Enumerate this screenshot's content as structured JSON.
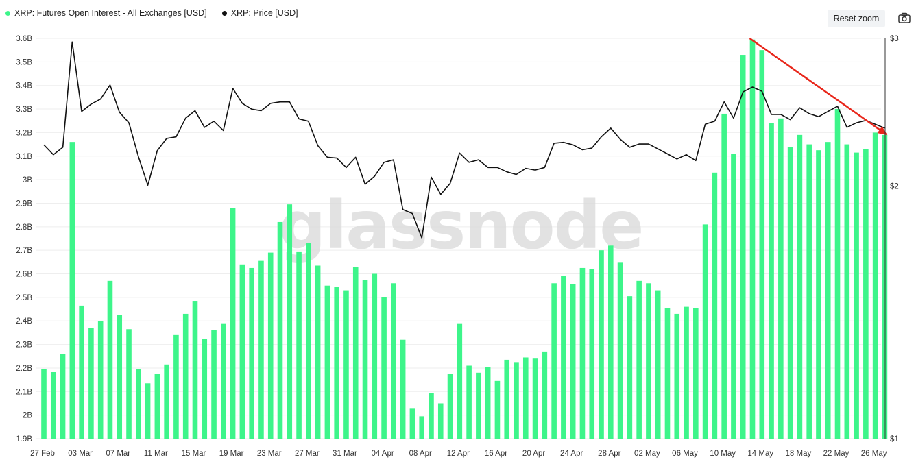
{
  "legend": {
    "oi_label": "XRP: Futures Open Interest - All Exchanges [USD]",
    "price_label": "XRP: Price [USD]"
  },
  "toolbar": {
    "reset_zoom_label": "Reset zoom",
    "camera_icon": "camera-icon"
  },
  "watermark": "glassnode",
  "colors": {
    "bar": "#3df58a",
    "price": "#111111",
    "trend": "#e8261a"
  },
  "chart_data": {
    "type": "bar",
    "dates": [
      "27 Feb",
      "28 Feb",
      "01 Mar",
      "02 Mar",
      "03 Mar",
      "04 Mar",
      "05 Mar",
      "06 Mar",
      "07 Mar",
      "08 Mar",
      "09 Mar",
      "10 Mar",
      "11 Mar",
      "12 Mar",
      "13 Mar",
      "14 Mar",
      "15 Mar",
      "16 Mar",
      "17 Mar",
      "18 Mar",
      "19 Mar",
      "20 Mar",
      "21 Mar",
      "22 Mar",
      "23 Mar",
      "24 Mar",
      "25 Mar",
      "26 Mar",
      "27 Mar",
      "28 Mar",
      "29 Mar",
      "30 Mar",
      "31 Mar",
      "01 Apr",
      "02 Apr",
      "03 Apr",
      "04 Apr",
      "05 Apr",
      "06 Apr",
      "07 Apr",
      "08 Apr",
      "09 Apr",
      "10 Apr",
      "11 Apr",
      "12 Apr",
      "13 Apr",
      "14 Apr",
      "15 Apr",
      "16 Apr",
      "17 Apr",
      "18 Apr",
      "19 Apr",
      "20 Apr",
      "21 Apr",
      "22 Apr",
      "23 Apr",
      "24 Apr",
      "25 Apr",
      "26 Apr",
      "27 Apr",
      "28 Apr",
      "29 Apr",
      "30 Apr",
      "01 May",
      "02 May",
      "03 May",
      "04 May",
      "05 May",
      "06 May",
      "07 May",
      "08 May",
      "09 May",
      "10 May",
      "11 May",
      "12 May",
      "13 May",
      "14 May",
      "15 May",
      "16 May",
      "17 May",
      "18 May",
      "19 May",
      "20 May",
      "21 May",
      "22 May",
      "23 May",
      "24 May",
      "25 May",
      "26 May",
      "27 May"
    ],
    "x_tick_labels": [
      "27 Feb",
      "03 Mar",
      "07 Mar",
      "11 Mar",
      "15 Mar",
      "19 Mar",
      "23 Mar",
      "27 Mar",
      "31 Mar",
      "04 Apr",
      "08 Apr",
      "12 Apr",
      "16 Apr",
      "20 Apr",
      "24 Apr",
      "28 Apr",
      "02 May",
      "06 May",
      "10 May",
      "14 May",
      "18 May",
      "22 May",
      "26 May"
    ],
    "series": [
      {
        "name": "XRP: Futures Open Interest - All Exchanges [USD]",
        "axis": "left",
        "type": "bar",
        "values": [
          2.195,
          2.185,
          2.26,
          3.16,
          2.465,
          2.37,
          2.4,
          2.57,
          2.425,
          2.365,
          2.195,
          2.135,
          2.175,
          2.215,
          2.34,
          2.43,
          2.485,
          2.325,
          2.36,
          2.39,
          2.88,
          2.64,
          2.625,
          2.655,
          2.69,
          2.82,
          2.895,
          2.695,
          2.73,
          2.635,
          2.55,
          2.545,
          2.53,
          2.63,
          2.575,
          2.6,
          2.5,
          2.56,
          2.32,
          2.03,
          1.995,
          2.095,
          2.05,
          2.175,
          2.39,
          2.21,
          2.18,
          2.205,
          2.145,
          2.235,
          2.225,
          2.245,
          2.24,
          2.27,
          2.56,
          2.59,
          2.555,
          2.625,
          2.62,
          2.7,
          2.72,
          2.65,
          2.505,
          2.57,
          2.56,
          2.53,
          2.455,
          2.43,
          2.46,
          2.455,
          2.81,
          3.03,
          3.28,
          3.11,
          3.53,
          3.595,
          3.55,
          3.24,
          3.26,
          3.14,
          3.19,
          3.15,
          3.125,
          3.16,
          3.3,
          3.15,
          3.115,
          3.13,
          3.2,
          3.19
        ]
      },
      {
        "name": "XRP: Price [USD]",
        "axis": "right",
        "type": "line",
        "values": [
          2.24,
          2.18,
          2.225,
          2.97,
          2.455,
          2.505,
          2.54,
          2.64,
          2.45,
          2.38,
          2.17,
          2.005,
          2.205,
          2.28,
          2.29,
          2.41,
          2.46,
          2.35,
          2.39,
          2.33,
          2.615,
          2.51,
          2.47,
          2.46,
          2.51,
          2.52,
          2.52,
          2.405,
          2.39,
          2.235,
          2.165,
          2.16,
          2.105,
          2.165,
          2.01,
          2.055,
          2.135,
          2.15,
          1.875,
          1.855,
          1.735,
          2.05,
          1.955,
          2.015,
          2.19,
          2.135,
          2.15,
          2.105,
          2.105,
          2.08,
          2.065,
          2.1,
          2.09,
          2.105,
          2.25,
          2.255,
          2.24,
          2.21,
          2.22,
          2.29,
          2.345,
          2.275,
          2.225,
          2.245,
          2.245,
          2.215,
          2.185,
          2.155,
          2.18,
          2.145,
          2.37,
          2.39,
          2.52,
          2.41,
          2.59,
          2.625,
          2.595,
          2.435,
          2.435,
          2.4,
          2.48,
          2.44,
          2.42,
          2.455,
          2.49,
          2.35,
          2.38,
          2.395,
          2.37,
          2.345
        ]
      }
    ],
    "y_left": {
      "min": 1.9,
      "max": 3.6,
      "ticks": [
        1.9,
        2.0,
        2.1,
        2.2,
        2.3,
        2.4,
        2.5,
        2.6,
        2.7,
        2.8,
        2.9,
        3.0,
        3.1,
        3.2,
        3.3,
        3.4,
        3.5,
        3.6
      ],
      "tick_labels": [
        "1.9B",
        "2B",
        "2.1B",
        "2.2B",
        "2.3B",
        "2.4B",
        "2.5B",
        "2.6B",
        "2.7B",
        "2.8B",
        "2.9B",
        "3B",
        "3.1B",
        "3.2B",
        "3.3B",
        "3.4B",
        "3.5B",
        "3.6B"
      ]
    },
    "y_right": {
      "min": 1,
      "max": 3,
      "scale": "log",
      "ticks": [
        1,
        2,
        3
      ],
      "tick_labels": [
        "$1",
        "$2",
        "$3"
      ]
    },
    "annotation": {
      "type": "arrow",
      "from_index": 75,
      "from_price": 3.0,
      "to_index": 89,
      "to_price": 2.3
    },
    "grid": true,
    "legend_position": "top-left"
  }
}
